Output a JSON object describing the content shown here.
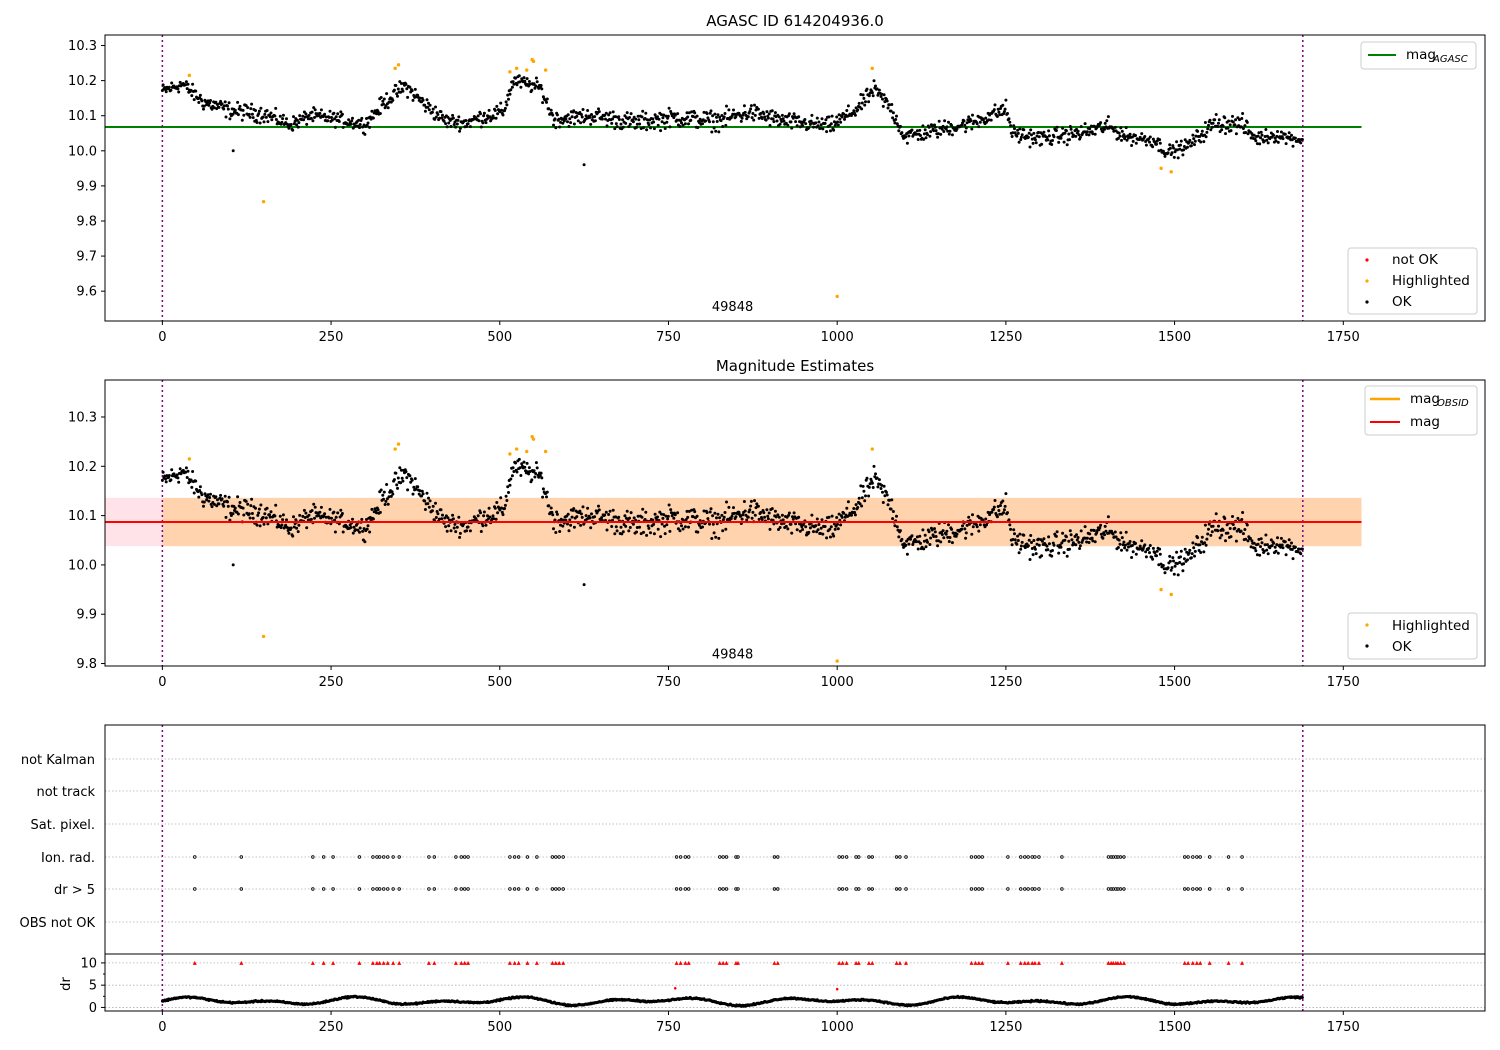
{
  "colors": {
    "ok": "#000000",
    "highlighted": "#ffa500",
    "not_ok": "#ff0000",
    "agasc_line": "#008000",
    "mag_line": "#ff0000",
    "obsid_line": "#ffa500",
    "band": "#ffc0cb",
    "vline": "#800080",
    "grid": "#b0b0b0"
  },
  "chart_data": [
    {
      "type": "scatter",
      "title": "AGASC ID 614204936.0",
      "xlim": [
        -85,
        1960
      ],
      "ylim": [
        9.515,
        10.33
      ],
      "xticks": [
        0,
        250,
        500,
        750,
        1000,
        1250,
        1500,
        1750
      ],
      "yticks": [
        9.6,
        9.7,
        9.8,
        9.9,
        10.0,
        10.1,
        10.2,
        10.3
      ],
      "ytick_labels": [
        "9.6",
        "9.7",
        "9.8",
        "9.9",
        "10.0",
        "10.1",
        "10.2",
        "10.3"
      ],
      "vlines": [
        0,
        1690
      ],
      "hlines": [
        {
          "name": "mag_AGASC",
          "y": 10.068,
          "x": [
            -85,
            1777
          ]
        }
      ],
      "annotation": {
        "text": "49848",
        "x": 845,
        "y": 9.555
      },
      "legend_lines": [
        {
          "label": "mag",
          "sub": "AGASC"
        }
      ],
      "legend_markers": [
        {
          "label": "not OK"
        },
        {
          "label": "Highlighted"
        },
        {
          "label": "OK"
        }
      ],
      "highlighted_points": [
        [
          40,
          10.215
        ],
        [
          150,
          9.855
        ],
        [
          345,
          10.235
        ],
        [
          350,
          10.245
        ],
        [
          515,
          10.225
        ],
        [
          525,
          10.235
        ],
        [
          540,
          10.23
        ],
        [
          548,
          10.26
        ],
        [
          550,
          10.255
        ],
        [
          568,
          10.23
        ],
        [
          1000,
          9.585
        ],
        [
          1052,
          10.235
        ],
        [
          1480,
          9.95
        ],
        [
          1495,
          9.94
        ]
      ],
      "segments": [
        [
          0,
          10.17,
          0.03
        ],
        [
          30,
          10.19,
          0.03
        ],
        [
          60,
          10.14,
          0.035
        ],
        [
          100,
          10.115,
          0.035
        ],
        [
          150,
          10.105,
          0.035
        ],
        [
          190,
          10.075,
          0.03
        ],
        [
          220,
          10.1,
          0.03
        ],
        [
          260,
          10.09,
          0.03
        ],
        [
          300,
          10.075,
          0.03
        ],
        [
          330,
          10.14,
          0.035
        ],
        [
          360,
          10.185,
          0.035
        ],
        [
          390,
          10.13,
          0.035
        ],
        [
          420,
          10.085,
          0.03
        ],
        [
          450,
          10.08,
          0.03
        ],
        [
          480,
          10.1,
          0.035
        ],
        [
          505,
          10.11,
          0.035
        ],
        [
          520,
          10.2,
          0.03
        ],
        [
          560,
          10.18,
          0.03
        ],
        [
          580,
          10.09,
          0.035
        ],
        [
          640,
          10.1,
          0.035
        ],
        [
          700,
          10.08,
          0.04
        ],
        [
          760,
          10.095,
          0.04
        ],
        [
          820,
          10.085,
          0.04
        ],
        [
          870,
          10.11,
          0.04
        ],
        [
          920,
          10.085,
          0.035
        ],
        [
          990,
          10.07,
          0.035
        ],
        [
          1030,
          10.12,
          0.035
        ],
        [
          1055,
          10.175,
          0.035
        ],
        [
          1080,
          10.12,
          0.035
        ],
        [
          1100,
          10.04,
          0.035
        ],
        [
          1150,
          10.06,
          0.035
        ],
        [
          1200,
          10.08,
          0.035
        ],
        [
          1250,
          10.12,
          0.035
        ],
        [
          1260,
          10.05,
          0.035
        ],
        [
          1300,
          10.035,
          0.035
        ],
        [
          1360,
          10.05,
          0.035
        ],
        [
          1400,
          10.07,
          0.035
        ],
        [
          1430,
          10.04,
          0.03
        ],
        [
          1470,
          10.03,
          0.03
        ],
        [
          1490,
          9.995,
          0.03
        ],
        [
          1520,
          10.015,
          0.03
        ],
        [
          1560,
          10.08,
          0.04
        ],
        [
          1600,
          10.075,
          0.04
        ],
        [
          1620,
          10.035,
          0.03
        ],
        [
          1650,
          10.045,
          0.03
        ],
        [
          1690,
          10.03,
          0.025
        ]
      ],
      "outliers": [
        [
          105,
          10.0
        ],
        [
          625,
          9.96
        ]
      ]
    },
    {
      "type": "scatter",
      "title": "Magnitude Estimates",
      "xlim": [
        -85,
        1960
      ],
      "ylim": [
        9.795,
        10.375
      ],
      "xticks": [
        0,
        250,
        500,
        750,
        1000,
        1250,
        1500,
        1750
      ],
      "yticks": [
        9.8,
        9.9,
        10.0,
        10.1,
        10.2,
        10.3
      ],
      "ytick_labels": [
        "9.8",
        "9.9",
        "10.0",
        "10.1",
        "10.2",
        "10.3"
      ],
      "vlines": [
        0,
        1690
      ],
      "mag_line": {
        "name": "mag",
        "y": 10.087,
        "x": [
          -85,
          1777
        ]
      },
      "band": {
        "y": [
          10.038,
          10.136
        ],
        "x": [
          -85,
          1777
        ]
      },
      "obsid_band": {
        "y": [
          10.038,
          10.136
        ],
        "x": [
          0,
          1777
        ]
      },
      "annotation": {
        "text": "49848",
        "x": 845,
        "y": 9.818
      },
      "legend_lines": [
        {
          "label": "mag",
          "sub": "OBSID"
        },
        {
          "label": "mag",
          "sub": ""
        }
      ],
      "legend_markers": [
        {
          "label": "Highlighted"
        },
        {
          "label": "OK"
        }
      ],
      "highlighted_points": [
        [
          40,
          10.215
        ],
        [
          150,
          9.855
        ],
        [
          345,
          10.235
        ],
        [
          350,
          10.245
        ],
        [
          515,
          10.225
        ],
        [
          525,
          10.235
        ],
        [
          540,
          10.23
        ],
        [
          548,
          10.26
        ],
        [
          550,
          10.255
        ],
        [
          568,
          10.23
        ],
        [
          1000,
          9.805
        ],
        [
          1052,
          10.235
        ],
        [
          1480,
          9.95
        ],
        [
          1495,
          9.94
        ]
      ]
    },
    {
      "type": "scatter",
      "categories": [
        "not Kalman",
        "not track",
        "Sat. pixel.",
        "Ion. rad.",
        "dr > 5",
        "OBS not OK"
      ],
      "flag_x": [
        48,
        117,
        223,
        239,
        253,
        292,
        312,
        318,
        322,
        328,
        334,
        342,
        351,
        395,
        403,
        435,
        443,
        448,
        453,
        515,
        522,
        528,
        541,
        555,
        578,
        583,
        588,
        594,
        762,
        768,
        775,
        780,
        826,
        831,
        836,
        850,
        853,
        907,
        912,
        1003,
        1008,
        1014,
        1028,
        1032,
        1047,
        1052,
        1088,
        1093,
        1102,
        1199,
        1205,
        1210,
        1215,
        1253,
        1272,
        1278,
        1283,
        1289,
        1293,
        1299,
        1333,
        1402,
        1406,
        1409,
        1413,
        1416,
        1420,
        1425,
        1515,
        1520,
        1527,
        1533,
        1538,
        1552,
        1580,
        1600
      ],
      "xlim": [
        -85,
        1960
      ],
      "vlines": [
        0,
        1690
      ]
    },
    {
      "type": "scatter",
      "ylabel": "dr",
      "xlim": [
        -85,
        1960
      ],
      "ylim": [
        -0.8,
        12
      ],
      "xticks": [
        0,
        250,
        500,
        750,
        1000,
        1250,
        1500,
        1750
      ],
      "yticks": [
        0,
        5,
        10
      ],
      "ytick_labels": [
        "0",
        "5",
        "10"
      ],
      "vlines": [
        0,
        1690
      ],
      "red_points": [
        [
          760,
          4.3
        ],
        [
          1000,
          4.1
        ]
      ]
    }
  ]
}
